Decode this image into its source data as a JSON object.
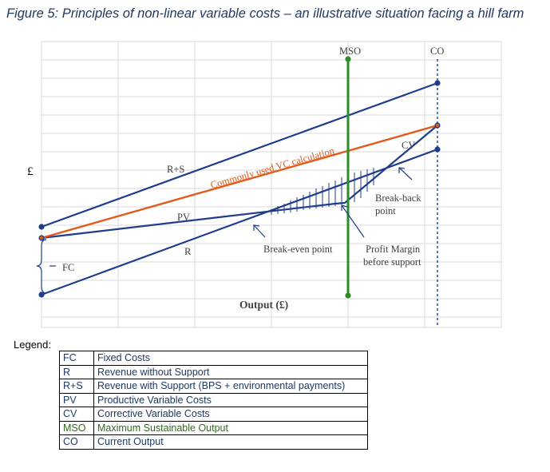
{
  "figure": {
    "title": "Figure 5: Principles of non-linear variable costs – an illustrative situation facing a hill farm"
  },
  "diagram": {
    "y_axis_label": "£",
    "x_axis_label": "Output (£)",
    "fc_label": "FC",
    "mso_label": "MSO",
    "co_label": "CO",
    "rs_label": "R+S",
    "pv_label": "PV",
    "r_label": "R",
    "cv_label": "CV",
    "vc_line_label": "Commonly used VC calculation",
    "break_even_label": "Break-even point",
    "break_back_line1": "Break-back",
    "break_back_line2": "point",
    "profit_margin_line1": "Profit Margin",
    "profit_margin_line2": "before support"
  },
  "colors": {
    "title": "#1f3864",
    "line_blue": "#1f3d8c",
    "line_orange": "#e05a1c",
    "line_green": "#2e8b2a",
    "grid": "#d9d9d9",
    "legend_text": "#1f3864",
    "mso_text": "#2e6b1e"
  },
  "legend": {
    "heading": "Legend:",
    "rows": [
      {
        "abbr": "FC",
        "desc": "Fixed Costs"
      },
      {
        "abbr": "R",
        "desc": "Revenue without Support"
      },
      {
        "abbr": "R+S",
        "desc": "Revenue with Support (BPS + environmental payments)"
      },
      {
        "abbr": "PV",
        "desc": "Productive Variable Costs"
      },
      {
        "abbr": "CV",
        "desc": "Corrective Variable Costs"
      },
      {
        "abbr": "MSO",
        "desc": "Maximum Sustainable Output"
      },
      {
        "abbr": "CO",
        "desc": "Current Output"
      }
    ]
  }
}
